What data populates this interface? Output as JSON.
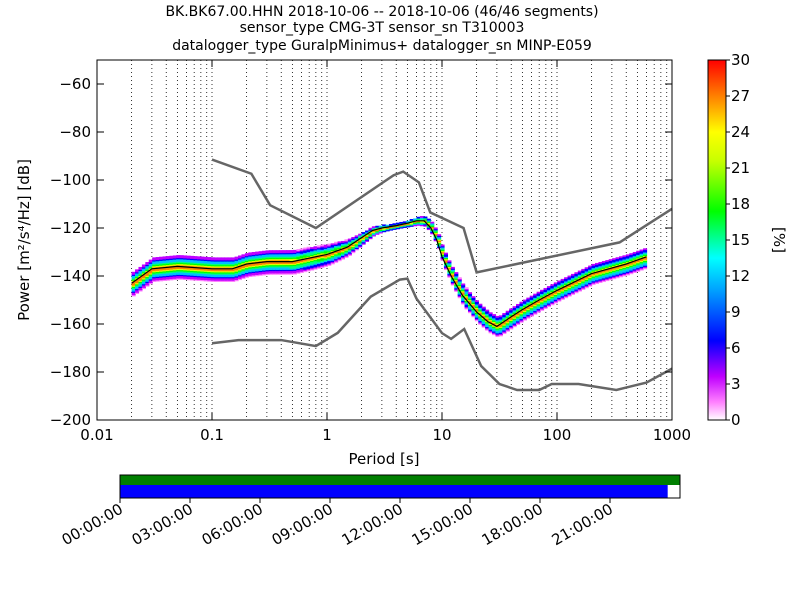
{
  "title_lines": [
    "BK.BK67.00.HHN   2018-10-06 -- 2018-10-06  (46/46 segments)",
    "sensor_type CMG-3T sensor_sn T310003",
    "datalogger_type GuralpMinimus+ datalogger_sn MINP-E059"
  ],
  "chart_data": {
    "type": "heatmap",
    "xlabel": "Period [s]",
    "ylabel": "Power [m²/s⁴/Hz] [dB]",
    "x_scale": "log",
    "xlim": [
      0.01,
      1000
    ],
    "ylim": [
      -200,
      -50
    ],
    "x_ticks": [
      {
        "value": 0.01,
        "label": "0.01"
      },
      {
        "value": 0.1,
        "label": "0.1"
      },
      {
        "value": 1,
        "label": "1"
      },
      {
        "value": 10,
        "label": "10"
      },
      {
        "value": 100,
        "label": "100"
      },
      {
        "value": 1000,
        "label": "1000"
      }
    ],
    "y_ticks": [
      {
        "value": -60,
        "label": "−60"
      },
      {
        "value": -80,
        "label": "−80"
      },
      {
        "value": -100,
        "label": "−100"
      },
      {
        "value": -120,
        "label": "−120"
      },
      {
        "value": -140,
        "label": "−140"
      },
      {
        "value": -160,
        "label": "−160"
      },
      {
        "value": -180,
        "label": "−180"
      },
      {
        "value": -200,
        "label": "−200"
      }
    ],
    "grid": "dotted-vertical",
    "noise_models": [
      {
        "values": [
          [
            0.1,
            -91.5
          ],
          [
            0.22,
            -97.4
          ],
          [
            0.32,
            -110.5
          ],
          [
            0.8,
            -120
          ],
          [
            3.8,
            -98
          ],
          [
            4.6,
            -96.5
          ],
          [
            6.3,
            -101
          ],
          [
            7.9,
            -113.5
          ],
          [
            15.4,
            -120
          ],
          [
            20,
            -138.5
          ],
          [
            350,
            -126
          ],
          [
            1000,
            -112
          ]
        ]
      },
      {
        "values": [
          [
            0.1,
            -168
          ],
          [
            0.17,
            -166.7
          ],
          [
            0.4,
            -166.7
          ],
          [
            0.8,
            -169.2
          ],
          [
            1.24,
            -163.7
          ],
          [
            2.4,
            -148.6
          ],
          [
            4.3,
            -141.5
          ],
          [
            5,
            -141.1
          ],
          [
            6,
            -149.4
          ],
          [
            10,
            -163.8
          ],
          [
            12,
            -166.2
          ],
          [
            15.6,
            -162.1
          ],
          [
            21.9,
            -177.5
          ],
          [
            31.6,
            -185
          ],
          [
            45,
            -187.5
          ],
          [
            70,
            -187.5
          ],
          [
            90,
            -185
          ],
          [
            154,
            -185
          ],
          [
            328,
            -187.5
          ],
          [
            600,
            -184.4
          ],
          [
            1000,
            -178.6
          ]
        ]
      }
    ],
    "ppsd_mode": [
      [
        0.02,
        -143
      ],
      [
        0.03,
        -137
      ],
      [
        0.05,
        -136
      ],
      [
        0.1,
        -137
      ],
      [
        0.15,
        -137
      ],
      [
        0.2,
        -135
      ],
      [
        0.3,
        -134
      ],
      [
        0.5,
        -134
      ],
      [
        1,
        -131
      ],
      [
        1.5,
        -128
      ],
      [
        2,
        -124
      ],
      [
        2.5,
        -121
      ],
      [
        3,
        -120
      ],
      [
        4,
        -119
      ],
      [
        5,
        -118
      ],
      [
        6,
        -117
      ],
      [
        7,
        -117
      ],
      [
        8,
        -120
      ],
      [
        9,
        -125
      ],
      [
        10,
        -132
      ],
      [
        12,
        -140
      ],
      [
        15,
        -148
      ],
      [
        20,
        -155
      ],
      [
        25,
        -159
      ],
      [
        30,
        -161
      ],
      [
        40,
        -157
      ],
      [
        50,
        -154
      ],
      [
        70,
        -150
      ],
      [
        100,
        -146
      ],
      [
        200,
        -139
      ],
      [
        400,
        -135
      ],
      [
        600,
        -132
      ]
    ],
    "colorbar": {
      "label": "[%]",
      "range": [
        0,
        30
      ],
      "ticks": [
        {
          "value": 0,
          "label": "0"
        },
        {
          "value": 3,
          "label": "3"
        },
        {
          "value": 6,
          "label": "6"
        },
        {
          "value": 9,
          "label": "9"
        },
        {
          "value": 12,
          "label": "12"
        },
        {
          "value": 15,
          "label": "15"
        },
        {
          "value": 18,
          "label": "18"
        },
        {
          "value": 21,
          "label": "21"
        },
        {
          "value": 24,
          "label": "24"
        },
        {
          "value": 27,
          "label": "27"
        },
        {
          "value": 30,
          "label": "30"
        }
      ]
    },
    "data_coverage": {
      "time_labels": [
        "00:00:00",
        "03:00:00",
        "06:00:00",
        "09:00:00",
        "12:00:00",
        "15:00:00",
        "18:00:00",
        "21:00:00"
      ],
      "green_fraction": 1.0,
      "blue_fraction": 0.978,
      "colors": {
        "green": "#007f00",
        "blue": "#0000ff"
      }
    }
  },
  "colors": {
    "noise_model": "#666666",
    "mode_line": "#000000",
    "frame": "#000000"
  }
}
